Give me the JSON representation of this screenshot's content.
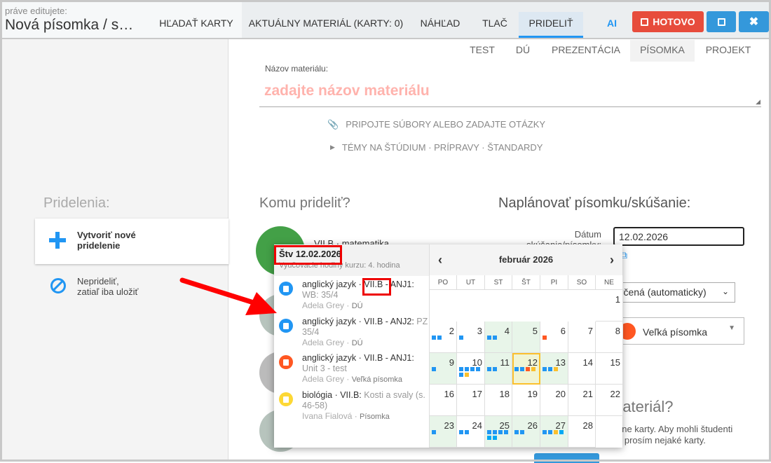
{
  "header": {
    "editing_label": "práve editujete:",
    "doc_title": "Nová písomka / s…",
    "tabs": [
      {
        "label": "HĽADAŤ KARTY"
      },
      {
        "label": "AKTUÁLNY MATERIÁL (KARTY: 0)"
      },
      {
        "label": "NÁHĽAD"
      },
      {
        "label": "TLAČ"
      },
      {
        "label": "PRIDELIŤ",
        "active": true
      }
    ],
    "ai_label": "AI",
    "done_label": "HOTOVO",
    "colors": {
      "done": "#e74c3c",
      "save": "#3498db",
      "close": "#3498db",
      "accent": "#2196f3"
    }
  },
  "type_tabs": [
    {
      "label": "TEST"
    },
    {
      "label": "DÚ"
    },
    {
      "label": "PREZENTÁCIA"
    },
    {
      "label": "PÍSOMKA",
      "active": true
    },
    {
      "label": "PROJEKT"
    }
  ],
  "material": {
    "name_label": "Názov materiálu:",
    "name_placeholder": "zadajte názov materiálu",
    "attach_label": "PRIPOJTE SÚBORY ALEBO ZADAJTE OTÁZKY",
    "topics_label": "TÉMY NA ŠTÚDIUM · PRÍPRAVY · ŠTANDARDY"
  },
  "sidebar": {
    "title": "Pridelenia:",
    "create_label": "Vytvoriť nové pridelenie",
    "skip_label_1": "Neprideliť,",
    "skip_label_2": "zatiaľ iba uložiť"
  },
  "assign": {
    "title": "Komu prideliť?",
    "first_class": "VII.B · matematika"
  },
  "schedule": {
    "title": "Naplánovať písomku/skúšanie:",
    "date_label": "Dátum skúšania/písomky:",
    "date_value": "12.02.2026",
    "lesson_select": "určená (automaticky)",
    "type_select": "Veľká písomka",
    "cards_title_partial": "materiál?",
    "cards_text_1": "dne karty. Aby mohli študenti",
    "cards_text_2": "e prosím nejaké karty."
  },
  "popup": {
    "day_title": "Štv 12.02.2026",
    "day_subtitle": "Vyučovacie hodiny kurzu: 4. hodina",
    "events": [
      {
        "subject": "anglický jazyk",
        "sep": " · ",
        "cls": "VII.B",
        "group": " - ANJ1:",
        "detail": "WB: 35/4",
        "teacher": "Adela Grey",
        "type": "DÚ",
        "color": "#2196f3"
      },
      {
        "subject": "anglický jazyk",
        "sep": " · ",
        "cls": "VII.B",
        "group": " - ANJ2:",
        "detail": "PZ 35/4",
        "teacher": "Adela Grey",
        "type": "DÚ",
        "color": "#2196f3"
      },
      {
        "subject": "anglický jazyk",
        "sep": " · ",
        "cls": "VII.B",
        "group": " - ANJ1:",
        "detail": "Unit 3 - test",
        "teacher": "Adela Grey",
        "type": "Veľká písomka",
        "color": "#ff5722"
      },
      {
        "subject": "biológia",
        "sep": " · ",
        "cls": "VII.B",
        "group": ":",
        "detail": "Kosti a svaly (s. 46-58)",
        "teacher": "Ivana Fialová",
        "type": "Písomka",
        "color": "#fdd835"
      }
    ],
    "calendar": {
      "month_label": "február 2026",
      "weekdays": [
        "PO",
        "UT",
        "ST",
        "ŠT",
        "PI",
        "SO",
        "NE"
      ],
      "first_weekday_offset": 6,
      "selected": 12,
      "dot_colors": {
        "b": "#2196f3",
        "o": "#ff5722",
        "y": "#fbc02d",
        "c": "#03a9f4"
      },
      "days": [
        {
          "d": 1,
          "dots": ""
        },
        {
          "d": 2,
          "dots": "bb"
        },
        {
          "d": 3,
          "dots": "b"
        },
        {
          "d": 4,
          "dots": "bb",
          "shaded": true
        },
        {
          "d": 5,
          "dots": "",
          "shaded": true
        },
        {
          "d": 6,
          "dots": "o"
        },
        {
          "d": 7,
          "dots": ""
        },
        {
          "d": 8,
          "dots": ""
        },
        {
          "d": 9,
          "dots": "b",
          "shaded": true
        },
        {
          "d": 10,
          "dots": "bbbbby"
        },
        {
          "d": 11,
          "dots": "bb",
          "shaded": true
        },
        {
          "d": 12,
          "dots": "bboy",
          "shaded": true
        },
        {
          "d": 13,
          "dots": "bby",
          "shaded": true
        },
        {
          "d": 14,
          "dots": ""
        },
        {
          "d": 15,
          "dots": ""
        },
        {
          "d": 16,
          "dots": ""
        },
        {
          "d": 17,
          "dots": ""
        },
        {
          "d": 18,
          "dots": ""
        },
        {
          "d": 19,
          "dots": ""
        },
        {
          "d": 20,
          "dots": ""
        },
        {
          "d": 21,
          "dots": ""
        },
        {
          "d": 22,
          "dots": ""
        },
        {
          "d": 23,
          "dots": "b",
          "shaded": true
        },
        {
          "d": 24,
          "dots": "bb"
        },
        {
          "d": 25,
          "dots": "bbbbcc",
          "shaded": true
        },
        {
          "d": 26,
          "dots": "bb",
          "shaded": true
        },
        {
          "d": 27,
          "dots": "bbyc",
          "shaded": true
        },
        {
          "d": 28,
          "dots": ""
        }
      ]
    }
  }
}
